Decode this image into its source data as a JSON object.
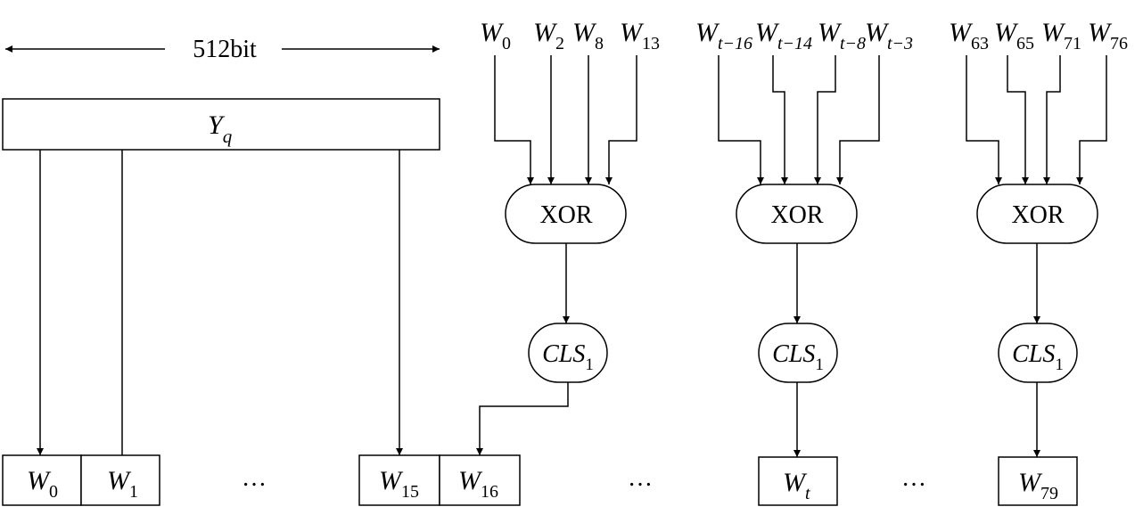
{
  "header": {
    "width_label": "512bit"
  },
  "source_block": {
    "var": "Y",
    "sub": "q"
  },
  "groups": [
    {
      "inputs": [
        {
          "var": "W",
          "sub": "0"
        },
        {
          "var": "W",
          "sub": "2"
        },
        {
          "var": "W",
          "sub": "8"
        },
        {
          "var": "W",
          "sub": "13"
        }
      ],
      "xor_label": "XOR",
      "cls": {
        "var": "CLS",
        "sub": "1"
      }
    },
    {
      "inputs": [
        {
          "var": "W",
          "sub": "t−16"
        },
        {
          "var": "W",
          "sub": "t−14"
        },
        {
          "var": "W",
          "sub": "t−8"
        },
        {
          "var": "W",
          "sub": "t−3"
        }
      ],
      "xor_label": "XOR",
      "cls": {
        "var": "CLS",
        "sub": "1"
      }
    },
    {
      "inputs": [
        {
          "var": "W",
          "sub": "63"
        },
        {
          "var": "W",
          "sub": "65"
        },
        {
          "var": "W",
          "sub": "71"
        },
        {
          "var": "W",
          "sub": "76"
        }
      ],
      "xor_label": "XOR",
      "cls": {
        "var": "CLS",
        "sub": "1"
      }
    }
  ],
  "outputs": [
    {
      "var": "W",
      "sub": "0"
    },
    {
      "var": "W",
      "sub": "1"
    },
    {
      "var": "W",
      "sub": "15"
    },
    {
      "var": "W",
      "sub": "16"
    },
    {
      "var": "W",
      "sub": "t"
    },
    {
      "var": "W",
      "sub": "79"
    }
  ],
  "ellipsis": "…"
}
